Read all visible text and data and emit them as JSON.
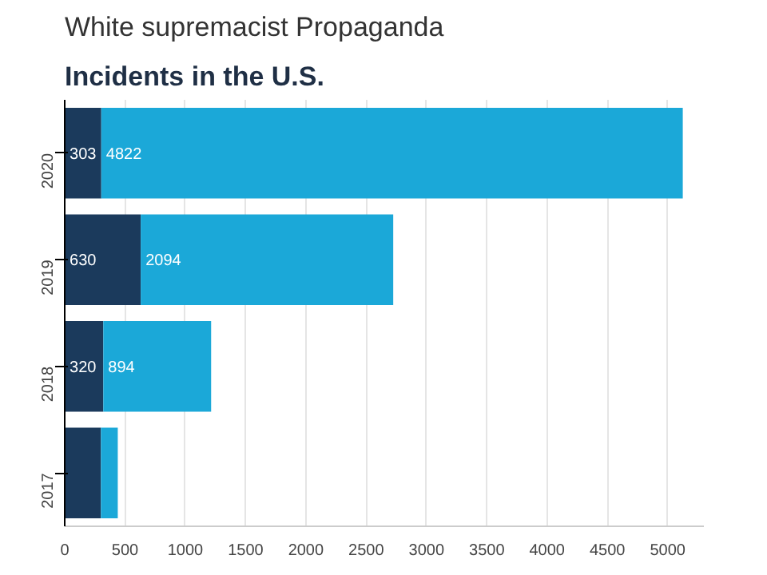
{
  "chart_data": {
    "type": "bar",
    "title": "White supremacist Propaganda",
    "subtitle": "Incidents in the U.S.",
    "orientation": "horizontal",
    "stacked": true,
    "categories": [
      "2020",
      "2019",
      "2018",
      "2017"
    ],
    "series": [
      {
        "color": "#1b3a5c",
        "values": [
          303,
          630,
          320,
          300
        ],
        "value_labels": [
          "303",
          "630",
          "320",
          null
        ]
      },
      {
        "color": "#1ba8d8",
        "values": [
          4822,
          2094,
          894,
          140
        ],
        "value_labels": [
          "4822",
          "2094",
          "894",
          null
        ]
      }
    ],
    "xlim": [
      0,
      5300
    ],
    "xticks": [
      0,
      500,
      1000,
      1500,
      2000,
      2500,
      3000,
      3500,
      4000,
      4500,
      5000
    ],
    "grid": "x"
  }
}
